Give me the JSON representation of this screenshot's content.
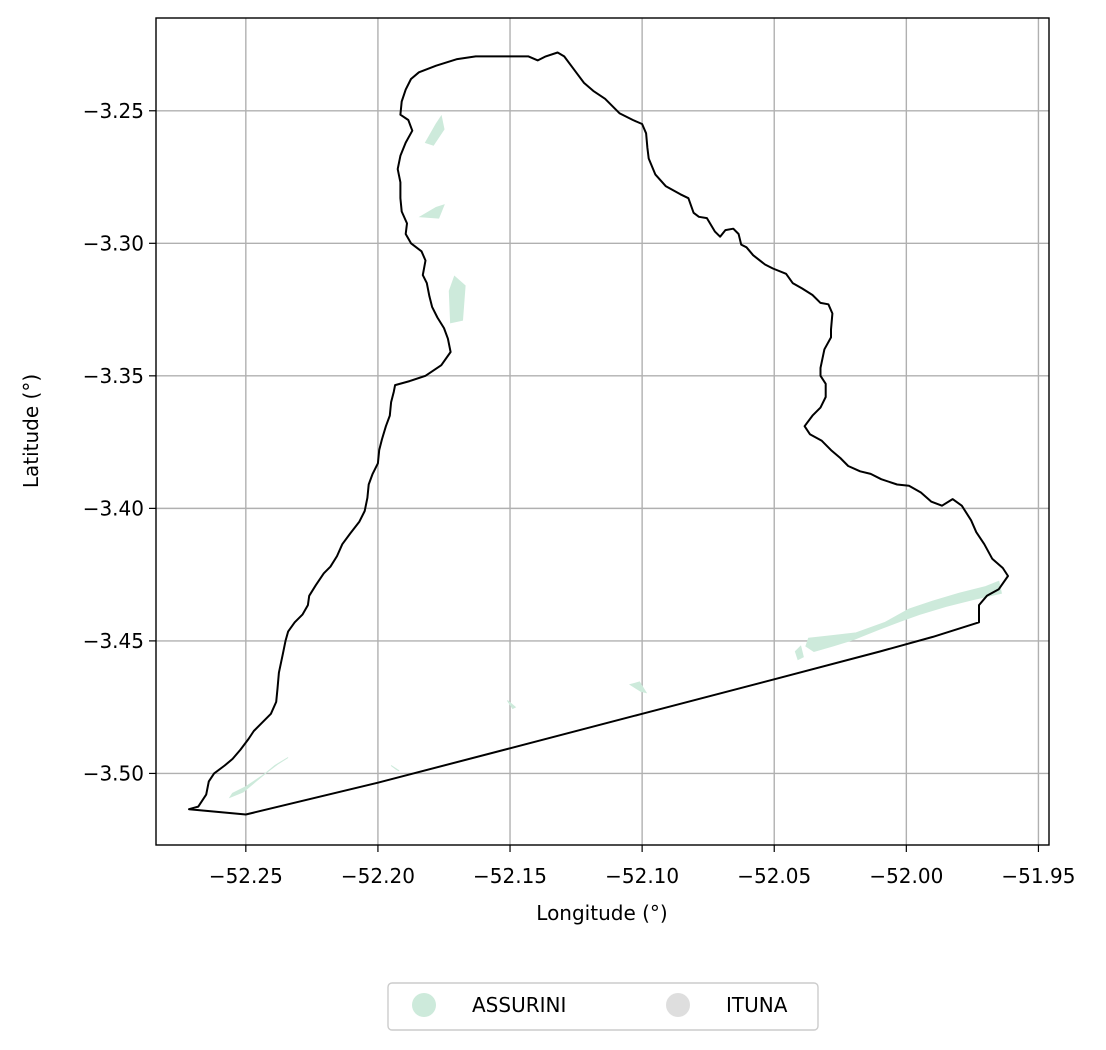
{
  "map": {
    "xlabel": "Longitude (°)",
    "ylabel": "Latitude (°)",
    "xlim": [
      -52.284,
      -51.946
    ],
    "ylim": [
      -3.527,
      -3.215
    ],
    "grid": true,
    "legend_position": "bottom-center",
    "xticks": [
      {
        "value": -52.25,
        "label": "−52.25"
      },
      {
        "value": -52.2,
        "label": "−52.20"
      },
      {
        "value": -52.15,
        "label": "−52.15"
      },
      {
        "value": -52.1,
        "label": "−52.10"
      },
      {
        "value": -52.05,
        "label": "−52.05"
      },
      {
        "value": -52.0,
        "label": "−52.00"
      },
      {
        "value": -51.95,
        "label": "−51.95"
      }
    ],
    "yticks": [
      {
        "value": -3.25,
        "label": "−3.25"
      },
      {
        "value": -3.3,
        "label": "−3.30"
      },
      {
        "value": -3.35,
        "label": "−3.35"
      },
      {
        "value": -3.4,
        "label": "−3.40"
      },
      {
        "value": -3.45,
        "label": "−3.45"
      },
      {
        "value": -3.5,
        "label": "−3.50"
      }
    ],
    "legend": [
      {
        "name": "ASSURINI",
        "color": "#cdeadb"
      },
      {
        "name": "ITUNA",
        "color": "#dedede"
      }
    ],
    "boundary_color": "#000000",
    "boundary": [
      [
        -52.2715,
        -3.5135
      ],
      [
        -52.268,
        -3.5125
      ],
      [
        -52.265,
        -3.508
      ],
      [
        -52.264,
        -3.503
      ],
      [
        -52.262,
        -3.5
      ],
      [
        -52.258,
        -3.497
      ],
      [
        -52.255,
        -3.4945
      ],
      [
        -52.252,
        -3.491
      ],
      [
        -52.249,
        -3.487
      ],
      [
        -52.247,
        -3.484
      ],
      [
        -52.244,
        -3.481
      ],
      [
        -52.2405,
        -3.4775
      ],
      [
        -52.2385,
        -3.473
      ],
      [
        -52.238,
        -3.468
      ],
      [
        -52.2375,
        -3.462
      ],
      [
        -52.236,
        -3.455
      ],
      [
        -52.235,
        -3.45
      ],
      [
        -52.234,
        -3.4465
      ],
      [
        -52.2315,
        -3.443
      ],
      [
        -52.2285,
        -3.44
      ],
      [
        -52.2265,
        -3.4365
      ],
      [
        -52.226,
        -3.433
      ],
      [
        -52.2235,
        -3.429
      ],
      [
        -52.2205,
        -3.4245
      ],
      [
        -52.218,
        -3.422
      ],
      [
        -52.2155,
        -3.418
      ],
      [
        -52.2135,
        -3.4135
      ],
      [
        -52.2105,
        -3.4095
      ],
      [
        -52.207,
        -3.405
      ],
      [
        -52.205,
        -3.401
      ],
      [
        -52.204,
        -3.396
      ],
      [
        -52.2035,
        -3.391
      ],
      [
        -52.202,
        -3.387
      ],
      [
        -52.2,
        -3.383
      ],
      [
        -52.1995,
        -3.378
      ],
      [
        -52.1985,
        -3.374
      ],
      [
        -52.197,
        -3.369
      ],
      [
        -52.1955,
        -3.365
      ],
      [
        -52.195,
        -3.36
      ],
      [
        -52.194,
        -3.356
      ],
      [
        -52.1935,
        -3.3535
      ],
      [
        -52.188,
        -3.352
      ],
      [
        -52.182,
        -3.35
      ],
      [
        -52.176,
        -3.346
      ],
      [
        -52.1725,
        -3.341
      ],
      [
        -52.1735,
        -3.336
      ],
      [
        -52.175,
        -3.332
      ],
      [
        -52.1775,
        -3.328
      ],
      [
        -52.1795,
        -3.324
      ],
      [
        -52.1805,
        -3.32
      ],
      [
        -52.1815,
        -3.315
      ],
      [
        -52.183,
        -3.312
      ],
      [
        -52.182,
        -3.3065
      ],
      [
        -52.1835,
        -3.303
      ],
      [
        -52.1875,
        -3.3
      ],
      [
        -52.1895,
        -3.2965
      ],
      [
        -52.189,
        -3.2925
      ],
      [
        -52.191,
        -3.288
      ],
      [
        -52.1915,
        -3.283
      ],
      [
        -52.1915,
        -3.277
      ],
      [
        -52.1925,
        -3.272
      ],
      [
        -52.1915,
        -3.267
      ],
      [
        -52.1895,
        -3.262
      ],
      [
        -52.187,
        -3.2575
      ],
      [
        -52.1885,
        -3.2535
      ],
      [
        -52.1915,
        -3.2515
      ],
      [
        -52.191,
        -3.2465
      ],
      [
        -52.1895,
        -3.242
      ],
      [
        -52.1875,
        -3.238
      ],
      [
        -52.1845,
        -3.2355
      ],
      [
        -52.178,
        -3.233
      ],
      [
        -52.17,
        -3.2305
      ],
      [
        -52.163,
        -3.2295
      ],
      [
        -52.155,
        -3.2295
      ],
      [
        -52.147,
        -3.2295
      ],
      [
        -52.143,
        -3.2295
      ],
      [
        -52.1395,
        -3.231
      ],
      [
        -52.1365,
        -3.2295
      ],
      [
        -52.132,
        -3.228
      ],
      [
        -52.1295,
        -3.2295
      ],
      [
        -52.125,
        -3.2355
      ],
      [
        -52.122,
        -3.2395
      ],
      [
        -52.1185,
        -3.2425
      ],
      [
        -52.114,
        -3.2455
      ],
      [
        -52.1085,
        -3.251
      ],
      [
        -52.1035,
        -3.2535
      ],
      [
        -52.1,
        -3.255
      ],
      [
        -52.0985,
        -3.2585
      ],
      [
        -52.098,
        -3.264
      ],
      [
        -52.0975,
        -3.268
      ],
      [
        -52.095,
        -3.274
      ],
      [
        -52.091,
        -3.2785
      ],
      [
        -52.0855,
        -3.2815
      ],
      [
        -52.0825,
        -3.283
      ],
      [
        -52.0805,
        -3.2885
      ],
      [
        -52.0785,
        -3.29
      ],
      [
        -52.0755,
        -3.2905
      ],
      [
        -52.0725,
        -3.2955
      ],
      [
        -52.0705,
        -3.2975
      ],
      [
        -52.0685,
        -3.295
      ],
      [
        -52.0655,
        -3.2945
      ],
      [
        -52.0635,
        -3.2965
      ],
      [
        -52.0625,
        -3.3005
      ],
      [
        -52.0605,
        -3.3015
      ],
      [
        -52.058,
        -3.3045
      ],
      [
        -52.0535,
        -3.308
      ],
      [
        -52.0505,
        -3.3095
      ],
      [
        -52.0455,
        -3.3115
      ],
      [
        -52.043,
        -3.315
      ],
      [
        -52.0395,
        -3.317
      ],
      [
        -52.0355,
        -3.3195
      ],
      [
        -52.0325,
        -3.3225
      ],
      [
        -52.0295,
        -3.323
      ],
      [
        -52.028,
        -3.3265
      ],
      [
        -52.0285,
        -3.3325
      ],
      [
        -52.0285,
        -3.3355
      ],
      [
        -52.031,
        -3.34
      ],
      [
        -52.0325,
        -3.347
      ],
      [
        -52.0325,
        -3.35
      ],
      [
        -52.0305,
        -3.353
      ],
      [
        -52.0305,
        -3.358
      ],
      [
        -52.0325,
        -3.362
      ],
      [
        -52.0355,
        -3.365
      ],
      [
        -52.0385,
        -3.369
      ],
      [
        -52.0365,
        -3.372
      ],
      [
        -52.032,
        -3.3745
      ],
      [
        -52.0285,
        -3.378
      ],
      [
        -52.025,
        -3.381
      ],
      [
        -52.022,
        -3.384
      ],
      [
        -52.0175,
        -3.386
      ],
      [
        -52.0135,
        -3.387
      ],
      [
        -52.0095,
        -3.389
      ],
      [
        -52.0035,
        -3.391
      ],
      [
        -51.999,
        -3.3915
      ],
      [
        -51.9945,
        -3.394
      ],
      [
        -51.9905,
        -3.3975
      ],
      [
        -51.9865,
        -3.399
      ],
      [
        -51.9825,
        -3.3965
      ],
      [
        -51.979,
        -3.399
      ],
      [
        -51.9755,
        -3.4045
      ],
      [
        -51.9735,
        -3.409
      ],
      [
        -51.9705,
        -3.4135
      ],
      [
        -51.9675,
        -3.419
      ],
      [
        -51.9635,
        -3.4225
      ],
      [
        -51.9615,
        -3.4255
      ],
      [
        -51.965,
        -3.4305
      ],
      [
        -51.9695,
        -3.433
      ],
      [
        -51.9725,
        -3.4365
      ],
      [
        -51.9725,
        -3.441
      ],
      [
        -51.9725,
        -3.443
      ],
      [
        -51.99,
        -3.4485
      ],
      [
        -52.01,
        -3.454
      ],
      [
        -52.05,
        -3.4645
      ],
      [
        -52.1,
        -3.4775
      ],
      [
        -52.15,
        -3.4905
      ],
      [
        -52.2,
        -3.5035
      ],
      [
        -52.25,
        -3.5155
      ],
      [
        -52.2715,
        -3.5135
      ]
    ],
    "assurini_areas": [
      [
        [
          -52.037,
          -3.449
        ],
        [
          -52.028,
          -3.448
        ],
        [
          -52.019,
          -3.447
        ],
        [
          -52.008,
          -3.443
        ],
        [
          -51.999,
          -3.438
        ],
        [
          -51.99,
          -3.435
        ],
        [
          -51.98,
          -3.432
        ],
        [
          -51.97,
          -3.4295
        ],
        [
          -51.965,
          -3.4275
        ],
        [
          -51.964,
          -3.432
        ],
        [
          -51.975,
          -3.4345
        ],
        [
          -51.985,
          -3.437
        ],
        [
          -51.995,
          -3.44
        ],
        [
          -52.002,
          -3.4425
        ],
        [
          -52.01,
          -3.4455
        ],
        [
          -52.02,
          -3.4495
        ],
        [
          -52.028,
          -3.452
        ],
        [
          -52.035,
          -3.454
        ],
        [
          -52.038,
          -3.452
        ]
      ],
      [
        [
          -52.042,
          -3.454
        ],
        [
          -52.04,
          -3.452
        ],
        [
          -52.039,
          -3.456
        ],
        [
          -52.041,
          -3.457
        ]
      ],
      [
        [
          -52.255,
          -3.5075
        ],
        [
          -52.25,
          -3.505
        ],
        [
          -52.244,
          -3.501
        ],
        [
          -52.238,
          -3.4965
        ],
        [
          -52.234,
          -3.494
        ],
        [
          -52.239,
          -3.497
        ],
        [
          -52.245,
          -3.502
        ],
        [
          -52.251,
          -3.507
        ],
        [
          -52.256,
          -3.509
        ]
      ],
      [
        [
          -52.182,
          -3.262
        ],
        [
          -52.178,
          -3.255
        ],
        [
          -52.176,
          -3.252
        ],
        [
          -52.175,
          -3.257
        ],
        [
          -52.179,
          -3.263
        ]
      ],
      [
        [
          -52.184,
          -3.29
        ],
        [
          -52.178,
          -3.2865
        ],
        [
          -52.175,
          -3.2855
        ],
        [
          -52.177,
          -3.2905
        ]
      ],
      [
        [
          -52.1725,
          -3.33
        ],
        [
          -52.168,
          -3.329
        ],
        [
          -52.167,
          -3.316
        ],
        [
          -52.171,
          -3.3125
        ],
        [
          -52.173,
          -3.318
        ]
      ],
      [
        [
          -52.1045,
          -3.4665
        ],
        [
          -52.1005,
          -3.469
        ],
        [
          -52.0985,
          -3.4695
        ],
        [
          -52.101,
          -3.4655
        ]
      ],
      [
        [
          -52.195,
          -3.497
        ],
        [
          -52.192,
          -3.499
        ],
        [
          -52.193,
          -3.4985
        ]
      ],
      [
        [
          -52.151,
          -3.4725
        ],
        [
          -52.148,
          -3.475
        ],
        [
          -52.149,
          -3.4755
        ]
      ]
    ]
  }
}
